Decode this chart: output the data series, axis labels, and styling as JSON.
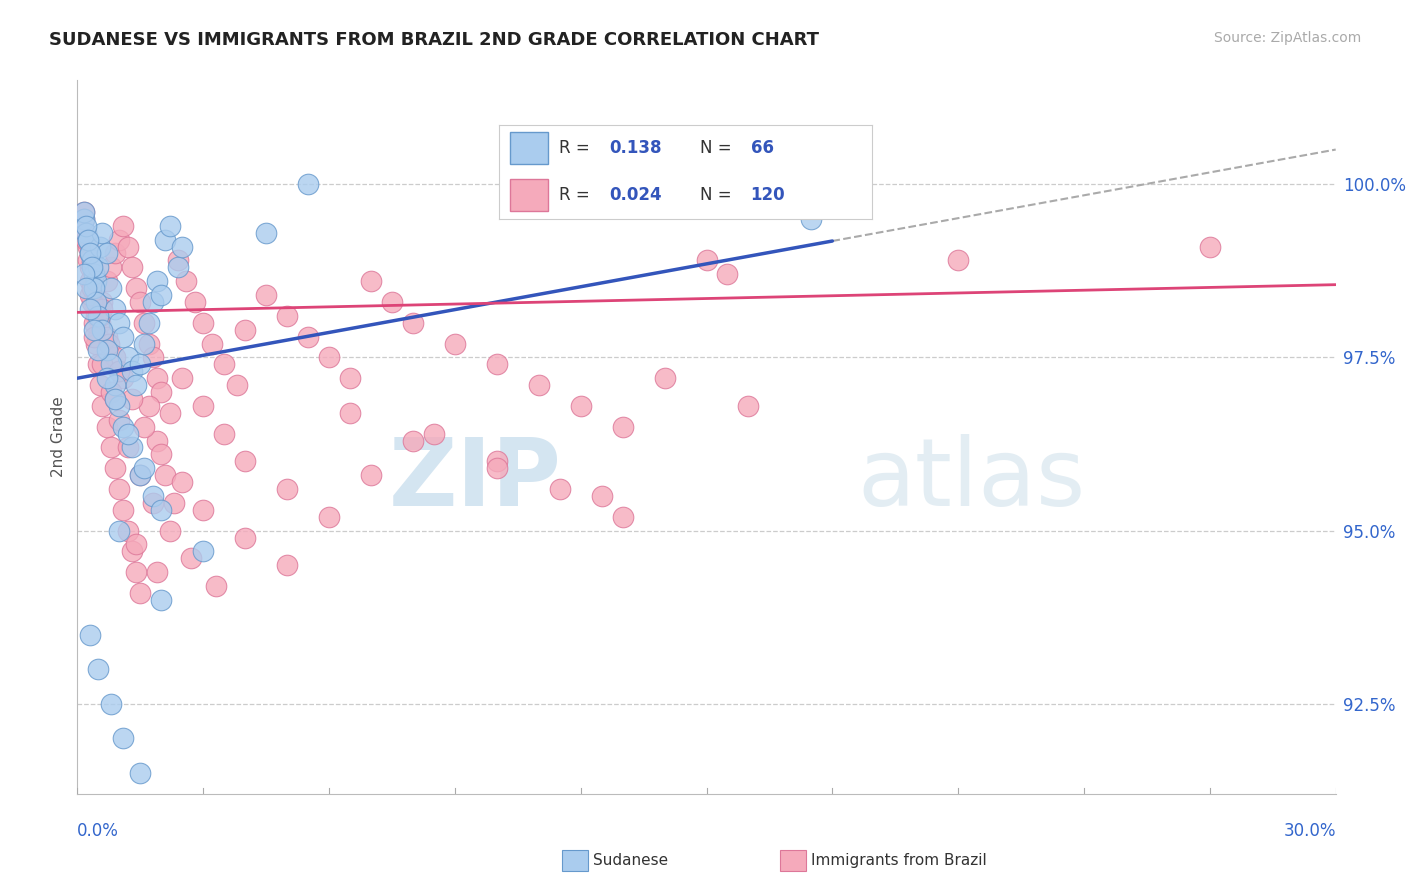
{
  "title": "SUDANESE VS IMMIGRANTS FROM BRAZIL 2ND GRADE CORRELATION CHART",
  "source_text": "Source: ZipAtlas.com",
  "ylabel": "2nd Grade",
  "xlim": [
    0.0,
    30.0
  ],
  "ylim": [
    91.2,
    101.5
  ],
  "yticks": [
    92.5,
    95.0,
    97.5,
    100.0
  ],
  "ytick_labels": [
    "92.5%",
    "95.0%",
    "97.5%",
    "100.0%"
  ],
  "blue_R": "0.138",
  "blue_N": "66",
  "pink_R": "0.024",
  "pink_N": "120",
  "blue_fill": "#aaccee",
  "blue_edge": "#6699cc",
  "pink_fill": "#f5aabb",
  "pink_edge": "#dd7799",
  "blue_line_color": "#3355bb",
  "pink_line_color": "#dd4477",
  "dash_color": "#aaaaaa",
  "watermark_zip": "ZIP",
  "watermark_atlas": "atlas",
  "blue_trend_x0": 0.0,
  "blue_trend_y0": 97.2,
  "blue_trend_x1": 30.0,
  "blue_trend_y1": 100.5,
  "blue_solid_end": 18.0,
  "pink_trend_x0": 0.0,
  "pink_trend_y0": 98.15,
  "pink_trend_x1": 30.0,
  "pink_trend_y1": 98.55,
  "blue_x": [
    0.15,
    0.2,
    0.25,
    0.3,
    0.35,
    0.4,
    0.45,
    0.5,
    0.55,
    0.6,
    0.7,
    0.8,
    0.9,
    1.0,
    1.1,
    1.2,
    1.3,
    1.4,
    1.5,
    1.6,
    1.7,
    1.8,
    1.9,
    2.0,
    2.1,
    2.2,
    2.4,
    0.15,
    0.2,
    0.25,
    0.3,
    0.35,
    0.4,
    0.45,
    0.5,
    0.6,
    0.7,
    0.8,
    0.9,
    1.0,
    1.1,
    1.3,
    1.5,
    1.8,
    2.5,
    0.15,
    0.2,
    0.3,
    0.4,
    0.5,
    0.7,
    0.9,
    1.2,
    1.6,
    2.0,
    3.0,
    4.5,
    5.5,
    0.3,
    0.5,
    0.8,
    1.1,
    1.5,
    2.0,
    1.0,
    17.5
  ],
  "blue_y": [
    99.5,
    99.3,
    99.2,
    99.0,
    98.9,
    98.7,
    98.6,
    98.8,
    99.1,
    99.3,
    99.0,
    98.5,
    98.2,
    98.0,
    97.8,
    97.5,
    97.3,
    97.1,
    97.4,
    97.7,
    98.0,
    98.3,
    98.6,
    98.4,
    99.2,
    99.4,
    98.8,
    99.6,
    99.4,
    99.2,
    99.0,
    98.8,
    98.5,
    98.3,
    98.1,
    97.9,
    97.6,
    97.4,
    97.1,
    96.8,
    96.5,
    96.2,
    95.8,
    95.5,
    99.1,
    98.7,
    98.5,
    98.2,
    97.9,
    97.6,
    97.2,
    96.9,
    96.4,
    95.9,
    95.3,
    94.7,
    99.3,
    100.0,
    93.5,
    93.0,
    92.5,
    92.0,
    91.5,
    94.0,
    95.0,
    99.5
  ],
  "pink_x": [
    0.15,
    0.2,
    0.25,
    0.3,
    0.35,
    0.4,
    0.45,
    0.5,
    0.55,
    0.6,
    0.7,
    0.8,
    0.9,
    1.0,
    1.1,
    1.2,
    1.3,
    1.4,
    1.5,
    1.6,
    1.7,
    1.8,
    1.9,
    2.0,
    2.2,
    2.4,
    2.6,
    2.8,
    3.0,
    3.2,
    3.5,
    3.8,
    4.0,
    4.5,
    5.0,
    5.5,
    6.0,
    6.5,
    7.0,
    7.5,
    8.0,
    9.0,
    10.0,
    11.0,
    12.0,
    13.0,
    14.0,
    15.0,
    0.15,
    0.2,
    0.25,
    0.3,
    0.35,
    0.4,
    0.45,
    0.5,
    0.55,
    0.6,
    0.7,
    0.8,
    0.9,
    1.0,
    1.1,
    1.2,
    1.3,
    1.4,
    1.5,
    1.7,
    1.9,
    2.1,
    2.3,
    2.5,
    3.0,
    3.5,
    4.0,
    5.0,
    6.0,
    7.0,
    8.5,
    10.0,
    11.5,
    13.0,
    0.3,
    0.5,
    0.7,
    0.9,
    1.1,
    1.3,
    1.6,
    2.0,
    2.5,
    3.0,
    4.0,
    5.0,
    6.5,
    8.0,
    10.0,
    12.5,
    16.0,
    21.0,
    0.4,
    0.6,
    0.8,
    1.0,
    1.2,
    1.5,
    1.8,
    2.2,
    2.7,
    3.3,
    0.35,
    0.55,
    0.75,
    1.0,
    1.4,
    1.9,
    27.0,
    0.9,
    0.6,
    15.5
  ],
  "pink_y": [
    99.6,
    99.3,
    99.1,
    98.8,
    98.6,
    98.3,
    98.1,
    97.8,
    98.0,
    98.3,
    98.6,
    98.8,
    99.0,
    99.2,
    99.4,
    99.1,
    98.8,
    98.5,
    98.3,
    98.0,
    97.7,
    97.5,
    97.2,
    97.0,
    96.7,
    98.9,
    98.6,
    98.3,
    98.0,
    97.7,
    97.4,
    97.1,
    97.9,
    98.4,
    98.1,
    97.8,
    97.5,
    97.2,
    98.6,
    98.3,
    98.0,
    97.7,
    97.4,
    97.1,
    96.8,
    96.5,
    97.2,
    98.9,
    99.5,
    99.2,
    98.9,
    98.6,
    98.3,
    98.0,
    97.7,
    97.4,
    97.1,
    96.8,
    96.5,
    96.2,
    95.9,
    95.6,
    95.3,
    95.0,
    94.7,
    94.4,
    94.1,
    96.8,
    96.3,
    95.8,
    95.4,
    97.2,
    96.8,
    96.4,
    96.0,
    95.6,
    95.2,
    95.8,
    96.4,
    96.0,
    95.6,
    95.2,
    98.4,
    98.1,
    97.8,
    97.5,
    97.2,
    96.9,
    96.5,
    96.1,
    95.7,
    95.3,
    94.9,
    94.5,
    96.7,
    96.3,
    95.9,
    95.5,
    96.8,
    98.9,
    97.8,
    97.4,
    97.0,
    96.6,
    96.2,
    95.8,
    95.4,
    95.0,
    94.6,
    94.2,
    98.5,
    98.1,
    97.7,
    97.3,
    94.8,
    94.4,
    99.1,
    96.9,
    98.2,
    98.7
  ]
}
